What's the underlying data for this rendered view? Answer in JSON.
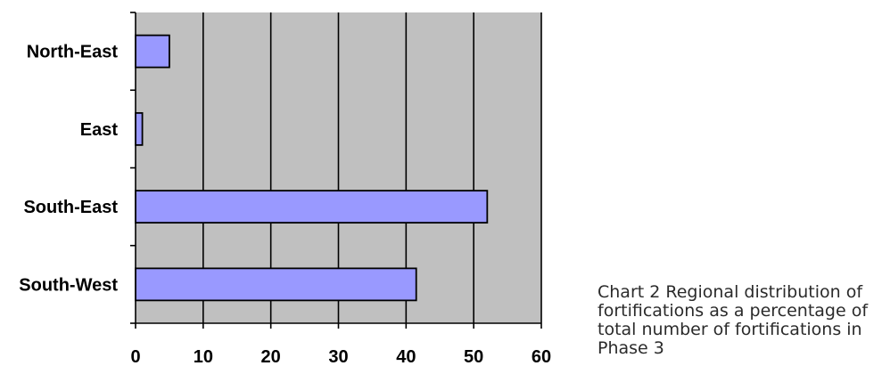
{
  "chart_data": {
    "type": "bar",
    "orientation": "horizontal",
    "categories": [
      "North-East",
      "East",
      "South-East",
      "South-West"
    ],
    "values": [
      5,
      1,
      52,
      41.5
    ],
    "xlim": [
      0,
      60
    ],
    "xticks": [
      0,
      10,
      20,
      30,
      40,
      50,
      60
    ],
    "grid": true,
    "legend": "none",
    "bar_color": "#9999ff",
    "plot_background": "#c0c0c0"
  },
  "caption": "Chart 2 Regional distribution of\nfortifications as a percentage of\ntotal number of fortifications in\nPhase 3"
}
